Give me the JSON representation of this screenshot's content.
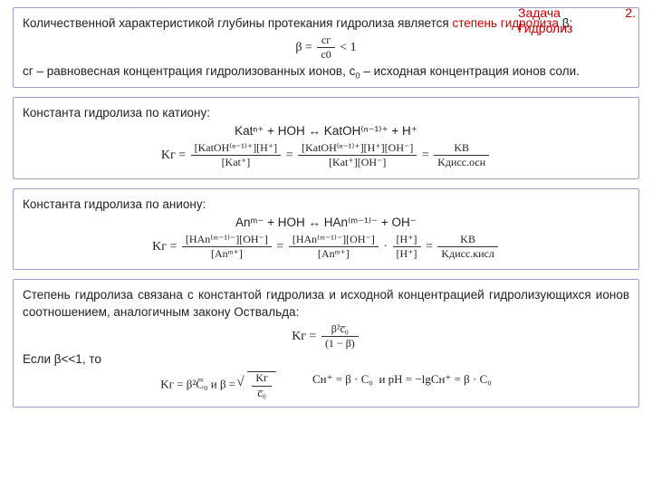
{
  "header": {
    "line1": "Задача",
    "line2": "Гидролиз",
    "num": "2."
  },
  "box1": {
    "p1a": "Количественной характеристикой глубины протекания гидролиза является ",
    "p1b": "степень гидролиза",
    "p1c": " β:",
    "eq_lhs": "β =",
    "eq_frac_n": "cг",
    "eq_frac_d": "c0",
    "eq_rhs": " < 1",
    "p2a": "cг",
    "p2b": " – равновесная концентрация гидролизованных ионов, c",
    "p2c": "0",
    "p2d": " – исходная концентрация ионов соли."
  },
  "box2": {
    "title": "Константа гидролиза по катиону:",
    "rxn": "Katⁿ⁺ + HOH ↔ KatOH⁽ⁿ⁻¹⁾⁺ + H⁺",
    "kg": "Kг =",
    "f1n": "[KatOH⁽ⁿ⁻¹⁾⁺][H⁺]",
    "f1d": "[Kat⁺]",
    "f2n": "[KatOH⁽ⁿ⁻¹⁾⁺][H⁺][OH⁻]",
    "f2d": "[Kat⁺][OH⁻]",
    "f3n": "KВ",
    "f3d": "Kдисс.осн"
  },
  "box3": {
    "title": "Константа гидролиза по аниону:",
    "rxn": "Anᵐ⁻ + HOH ↔ HAn⁽ᵐ⁻¹⁾⁻ + OH⁻",
    "kg": "Kг =",
    "f1n": "[HAn⁽ᵐ⁻¹⁾⁻][OH⁻]",
    "f1d": "[Anᵐ⁺]",
    "f2n": "[HAn⁽ᵐ⁻¹⁾⁻][OH⁻]",
    "f2d": "[Anᵐ⁺]",
    "f2bn": "[H⁺]",
    "f2bd": "[H⁺]",
    "f3n": "KВ",
    "f3d": "Kдисс.кисл"
  },
  "box4": {
    "p1": "Степень гидролиза связана с константой гидролиза и исходной концентрацией гидролизующихся ионов соотношением, аналогичным закону Оствальда:",
    "kg": "Kг =",
    "ostn": "β²c̅₀",
    "ostd": "(1 − β)",
    "cond": "Если β<<1, то",
    "l1a": "Kг = β²C̅₀",
    "and": "  и  ",
    "l1b_pre": "β = ",
    "l1b_n": "Kг",
    "l1b_d": "c̅₀",
    "l2a": "Cн⁺ = β · C₀",
    "l2b": "и  pH = −lgCн⁺ = β · C₀"
  }
}
